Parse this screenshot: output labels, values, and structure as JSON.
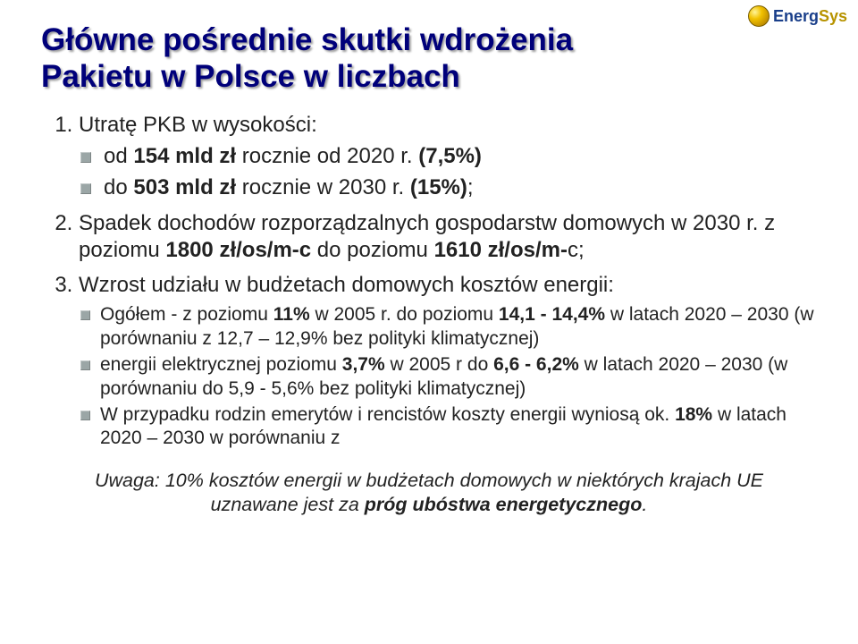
{
  "logo": {
    "brand_a": "Energ",
    "brand_b": "Sys"
  },
  "title_line1": "Główne pośrednie skutki wdrożenia",
  "title_line2": "Pakietu w Polsce w liczbach",
  "items": {
    "i1": {
      "lead": "Utratę PKB  w wysokości:"
    },
    "i1_bullets": {
      "b1_a": "od ",
      "b1_b": "154 mld zł",
      "b1_c": " rocznie od 2020 r. ",
      "b1_d": "(7,5%)",
      "b2_a": "do ",
      "b2_b": "503 mld zł",
      "b2_c": " rocznie w 2030 r. ",
      "b2_d": "(15%)",
      "b2_e": ";"
    },
    "i2": {
      "a": "Spadek dochodów rozporządzalnych gospodarstw domowych w 2030 r. z poziomu ",
      "b": "1800 zł/os/m-c",
      "c": " do poziomu ",
      "d": "1610 zł/os/m-",
      "e": "c;"
    },
    "i3": {
      "lead": "Wzrost udziału w budżetach domowych kosztów energii:"
    },
    "i3_bullets": {
      "b1_a": "Ogółem -  z poziomu ",
      "b1_b": "11%",
      "b1_c": " w 2005 r. do poziomu ",
      "b1_d": "14,1 - 14,4%",
      "b1_e": " w latach 2020 – 2030 (w porównaniu z 12,7 – 12,9% bez polityki klimatycznej)",
      "b2_a": "energii elektrycznej poziomu ",
      "b2_b": "3,7%",
      "b2_c": " w 2005 r do ",
      "b2_d": "6,6 - 6,2%",
      "b2_e": " w latach 2020 – 2030 (w porównaniu do 5,9 - 5,6% bez polityki klimatycznej)",
      "b3_a": "W przypadku rodzin emerytów i rencistów koszty energii wyniosą ok. ",
      "b3_b": "18%",
      "b3_c": " w latach 2020 – 2030 w porównaniu z"
    }
  },
  "note_a": "Uwaga:  10% kosztów energii w budżetach domowych  w niektórych krajach UE uznawane jest za ",
  "note_b": "próg ubóstwa energetycznego",
  "note_c": "."
}
